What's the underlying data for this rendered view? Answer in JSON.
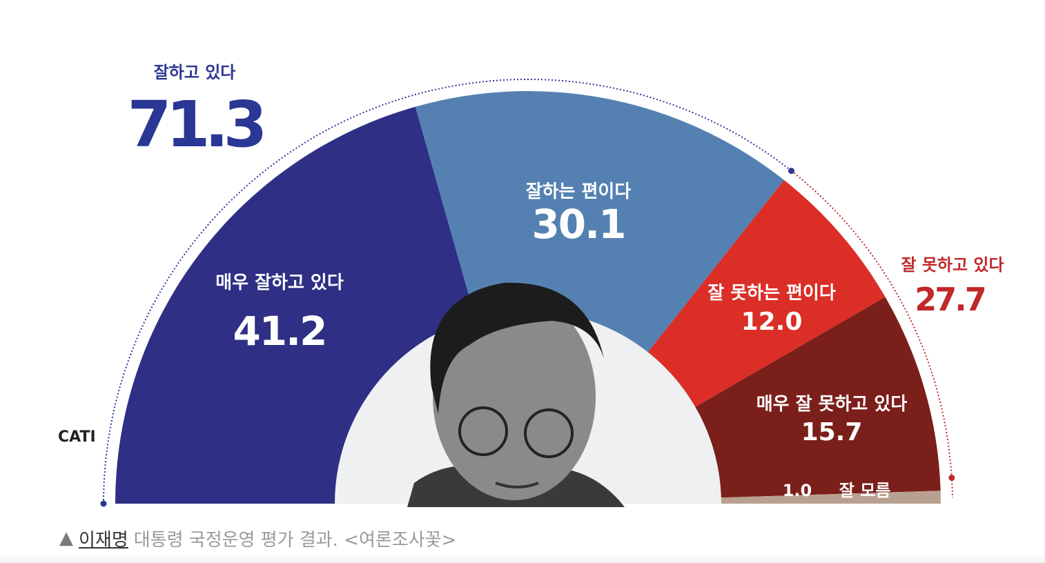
{
  "chart_data": {
    "type": "pie",
    "subtype": "semicircle",
    "method": "CATI",
    "slices": [
      {
        "key": "very_good",
        "label": "매우 잘하고 있다",
        "value": 41.2,
        "display": "41.2",
        "color": "#2e2f85"
      },
      {
        "key": "good",
        "label": "잘하는 편이다",
        "value": 30.1,
        "display": "30.1",
        "color": "#5481b2"
      },
      {
        "key": "bad",
        "label": "잘 못하는 편이다",
        "value": 12.0,
        "display": "12.0",
        "color": "#da2e27"
      },
      {
        "key": "very_bad",
        "label": "매우 잘 못하고 있다",
        "value": 15.7,
        "display": "15.7",
        "color": "#7b1f1a"
      },
      {
        "key": "dont_know",
        "label": "잘 모름",
        "value": 1.0,
        "display": "1.0",
        "color": "#b9a192"
      }
    ],
    "totals": {
      "positive": {
        "label": "잘하고 있다",
        "value": 71.3,
        "display": "71.3",
        "color": "#2b3794"
      },
      "negative": {
        "label": "잘 못하고 있다",
        "value": 27.7,
        "display": "27.7",
        "color": "#c0282a"
      }
    }
  },
  "caption": {
    "marker": "▲",
    "name": "이재명",
    "text": "대통령 국정운영 평가 결과. <여론조사꽃>"
  }
}
